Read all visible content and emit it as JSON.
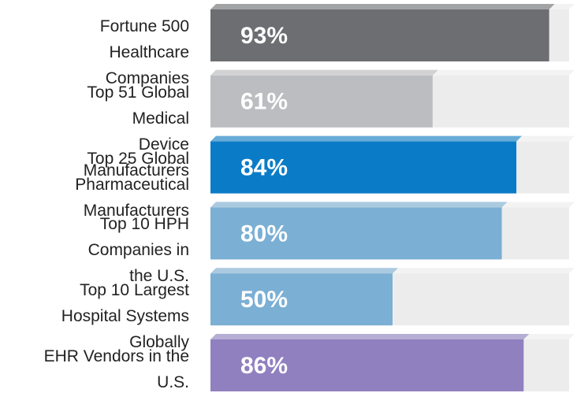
{
  "chart_data": {
    "type": "bar",
    "categories": [
      "Fortune 500 Healthcare Companies",
      "Top 51 Global Medical Device Manufacturers",
      "Top 25 Global Pharmaceutical Manufacturers",
      "Top 10 HPH Companies in the U.S.",
      "Top 10 Largest Hospital Systems Globally",
      "EHR Vendors in the U.S."
    ],
    "values": [
      93,
      61,
      84,
      80,
      50,
      86
    ],
    "value_labels": [
      "93%",
      "61%",
      "84%",
      "80%",
      "50%",
      "86%"
    ],
    "colors": [
      "#6d6e71",
      "#bcbdc0",
      "#0a7cc7",
      "#7bafd4",
      "#7bafd4",
      "#9080bf"
    ],
    "xlim": [
      0,
      100
    ]
  }
}
